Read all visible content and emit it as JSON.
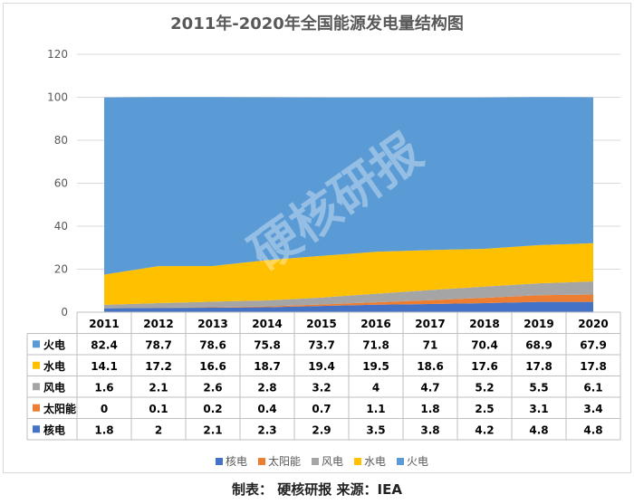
{
  "chart_data": {
    "type": "area",
    "stacked": true,
    "title": "2011年-2020年全国能源发电量结构图",
    "x": [
      "2011",
      "2012",
      "2013",
      "2014",
      "2015",
      "2016",
      "2017",
      "2018",
      "2019",
      "2020"
    ],
    "ylim": [
      0,
      120
    ],
    "yticks": [
      0,
      20,
      40,
      60,
      80,
      100,
      120
    ],
    "series": [
      {
        "name": "核电",
        "color": "#4472C4",
        "values": [
          1.8,
          2,
          2.1,
          2.3,
          2.9,
          3.5,
          3.8,
          4.2,
          4.8,
          4.8
        ]
      },
      {
        "name": "太阳能",
        "color": "#ED7D31",
        "values": [
          0,
          0.1,
          0.2,
          0.4,
          0.7,
          1.1,
          1.8,
          2.5,
          3.1,
          3.4
        ]
      },
      {
        "name": "风电",
        "color": "#A5A5A5",
        "values": [
          1.6,
          2.1,
          2.6,
          2.8,
          3.2,
          4,
          4.7,
          5.2,
          5.5,
          6.1
        ]
      },
      {
        "name": "水电",
        "color": "#FFC000",
        "values": [
          14.1,
          17.2,
          16.6,
          18.7,
          19.4,
          19.5,
          18.6,
          17.6,
          17.8,
          17.8
        ]
      },
      {
        "name": "火电",
        "color": "#5B9BD5",
        "values": [
          82.4,
          78.7,
          78.6,
          75.8,
          73.7,
          71.8,
          71,
          70.4,
          68.9,
          67.9
        ]
      }
    ],
    "table_row_order": [
      "火电",
      "水电",
      "风电",
      "太阳能",
      "核电"
    ],
    "legend_order": [
      "核电",
      "太阳能",
      "风电",
      "水电",
      "火电"
    ],
    "legend_position": "bottom",
    "grid": true
  },
  "footer": "制表： 硬核研报 来源：IEA",
  "watermark": "硬核研报"
}
